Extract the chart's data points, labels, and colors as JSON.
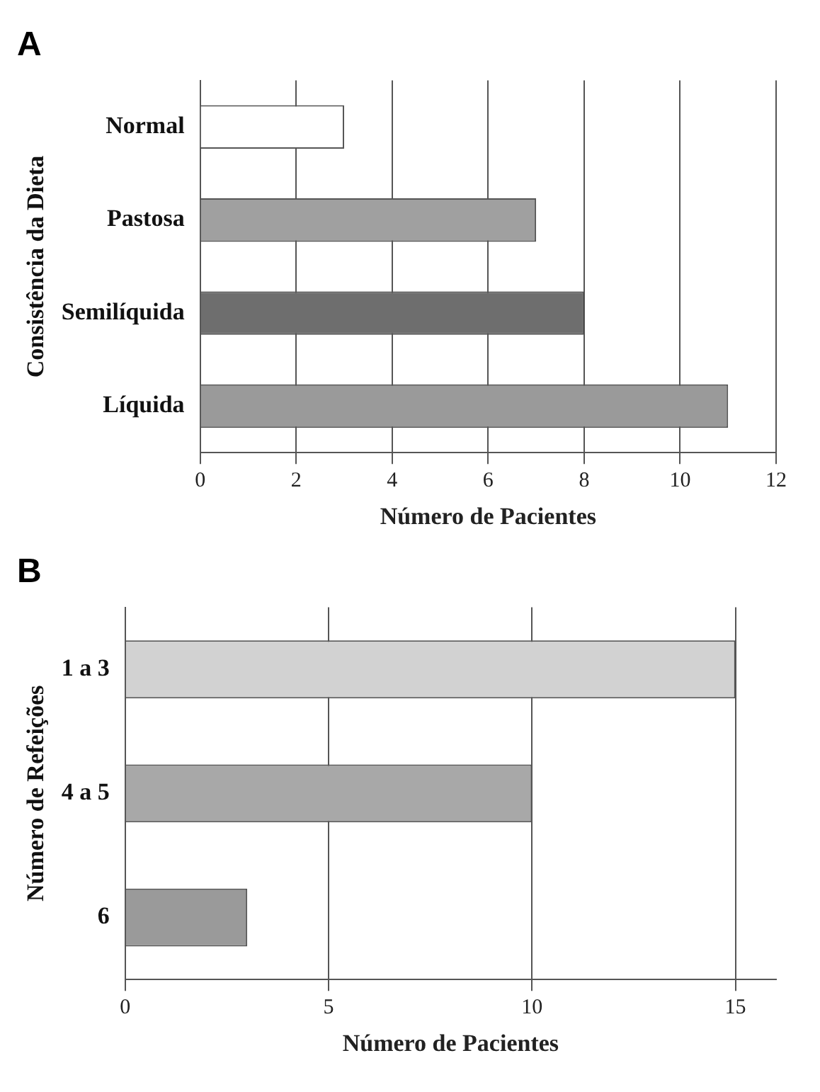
{
  "chart_data": [
    {
      "type": "bar",
      "title": "A",
      "orientation": "horizontal",
      "categories": [
        "Normal",
        "Pastosa",
        "Semilíquida",
        "Líquida"
      ],
      "values": [
        3,
        7,
        8,
        11
      ],
      "colors": [
        "#ffffff",
        "#a0a0a0",
        "#6e6e6e",
        "#9a9a9a"
      ],
      "xlim": [
        0,
        12
      ],
      "xticks": [
        0,
        2,
        4,
        6,
        8,
        10,
        12
      ],
      "xlabel": "Número de Pacientes",
      "ylabel": "Consistência da Dieta",
      "grid": "x",
      "legend": false
    },
    {
      "type": "bar",
      "title": "B",
      "orientation": "horizontal",
      "categories": [
        "1 a 3",
        "4 a 5",
        "6"
      ],
      "values": [
        15,
        10,
        3
      ],
      "colors": [
        "#d2d2d2",
        "#a8a8a8",
        "#9a9a9a"
      ],
      "xlim": [
        0,
        16
      ],
      "xticks": [
        0,
        5,
        10,
        15
      ],
      "xlabel": "Número de Pacientes",
      "ylabel": "Número de Refeições",
      "grid": "x",
      "legend": false
    }
  ]
}
